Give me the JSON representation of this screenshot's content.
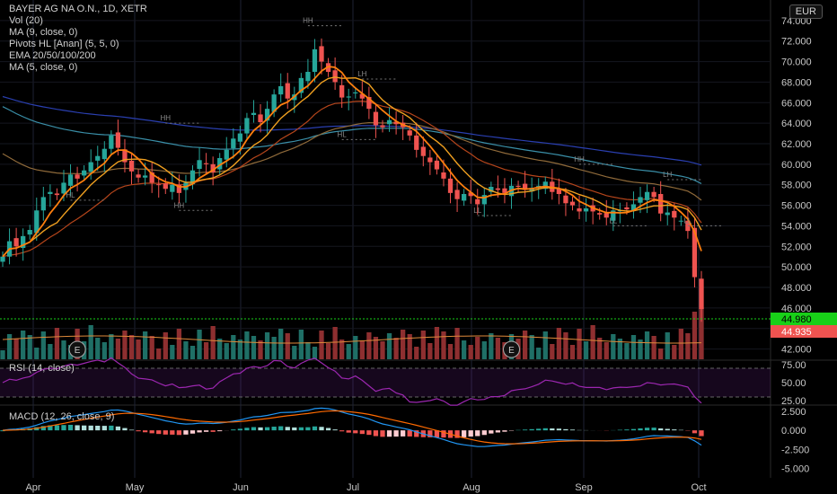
{
  "header": {
    "symbol": "BAYER AG NA O.N., 1D, XETR",
    "indicators": [
      "Vol (20)",
      "MA (9, close, 0)",
      "Pivots HL [Anan] (5, 5, 0)",
      "EMA 20/50/100/200",
      "MA (5, close, 0)"
    ],
    "currency": "EUR"
  },
  "panes": {
    "rsi_label": "RSI (14, close)",
    "macd_label": "MACD (12, 26, close, 9)"
  },
  "colors": {
    "up": "#26a69a",
    "down": "#ef5350",
    "ma9": "#f0a020",
    "ma5": "#ff7f0e",
    "ema20": "#b5451b",
    "ema50": "#8f6a3a",
    "ema100": "#3a8fa8",
    "ema200": "#2a3fb0",
    "rsi": "#9c27b0",
    "signal": "#ff6a00",
    "macd": "#2196f3",
    "last_price": "#ef5350",
    "green_level": "#18d018"
  },
  "chart_data": [
    {
      "type": "candlestick",
      "title": "BAYER AG NA O.N., 1D, XETR",
      "x_ticks": [
        "Apr",
        "May",
        "Jun",
        "Jul",
        "Aug",
        "Sep",
        "Oct"
      ],
      "y_ticks": [
        "42.000",
        "44.000",
        "46.000",
        "48.000",
        "50.000",
        "52.000",
        "54.000",
        "56.000",
        "58.000",
        "60.000",
        "62.000",
        "64.000",
        "66.000",
        "68.000",
        "70.000",
        "72.000",
        "74.000"
      ],
      "ylim": [
        41,
        76
      ],
      "closes": [
        51,
        52.5,
        52,
        53,
        53.6,
        55.5,
        56.8,
        57.3,
        57.0,
        58.2,
        59.0,
        58.6,
        59.4,
        60.2,
        60.8,
        61.5,
        62.8,
        61.6,
        60.2,
        59.3,
        58.7,
        58.9,
        58.2,
        58.0,
        57.6,
        58.0,
        57.2,
        58.2,
        59.4,
        60.4,
        60.0,
        59.2,
        60.6,
        61.4,
        62.5,
        63.0,
        64.5,
        65.0,
        64.1,
        65.4,
        66.8,
        67.6,
        66.4,
        66.8,
        68.4,
        69.0,
        71.2,
        70.0,
        69.0,
        68.0,
        66.5,
        66.6,
        67.0,
        66.4,
        65.4,
        63.8,
        63.6,
        64.3,
        63.9,
        63.6,
        62.8,
        61.4,
        60.8,
        60.2,
        59.5,
        58.6,
        57.2,
        56.6,
        57.1,
        56.9,
        56.1,
        57.0,
        57.8,
        57.5,
        57.2,
        57.9,
        57.8,
        57.5,
        57.7,
        57.9,
        58.3,
        57.3,
        57.1,
        56.2,
        56.0,
        55.4,
        55.7,
        55.4,
        55.1,
        54.8,
        55.5,
        55.5,
        55.6,
        56.1,
        56.8,
        57.3,
        56.8,
        55.2,
        55.3,
        54.8,
        54.5,
        53.5,
        49.0,
        45.9
      ],
      "last_price_label": "44.935",
      "green_level_label": "44.980",
      "pivot_labels": [
        "HH",
        "HL",
        "HH",
        "HL",
        "LH",
        "LL",
        "HH",
        "LL",
        "LH",
        "LL",
        "HH"
      ],
      "event_markers": [
        "E",
        "E"
      ]
    },
    {
      "type": "bar",
      "name": "Vol (20)",
      "note": "volume histogram overlaid at bottom of price pane"
    },
    {
      "type": "line",
      "title": "RSI (14, close)",
      "y_ticks": [
        "25.00",
        "50.00",
        "75.00"
      ],
      "ylim": [
        20,
        80
      ],
      "bands": [
        30,
        70
      ]
    },
    {
      "type": "line",
      "title": "MACD (12, 26, close, 9)",
      "y_ticks": [
        "2.500",
        "0.000",
        "-2.500",
        "-5.000"
      ],
      "ylim": [
        -6,
        3.2
      ]
    }
  ]
}
